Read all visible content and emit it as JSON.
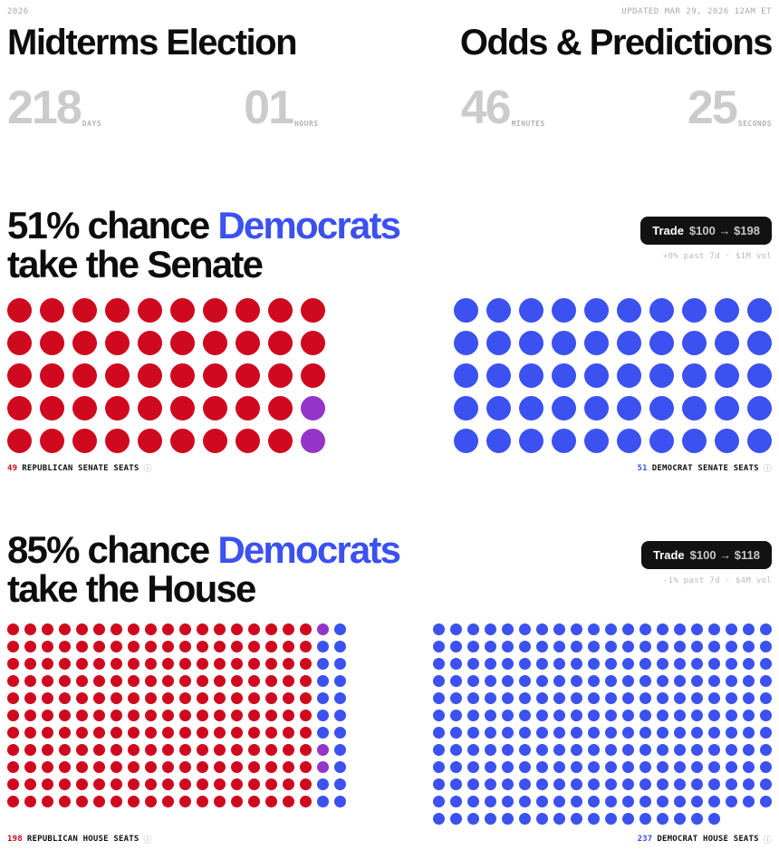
{
  "colors": {
    "red": "#cf0a1e",
    "blue": "#3b51f0",
    "purple": "#9435c9"
  },
  "icons": {
    "info": "ⓘ"
  },
  "header": {
    "year": "2026",
    "updated": "UPDATED MAR 29, 2026 12AM ET",
    "title_left": "Midterms Election",
    "title_right": "Odds & Predictions"
  },
  "countdown": [
    {
      "value": "218",
      "unit": "DAYS"
    },
    {
      "value": "01",
      "unit": "HOURS"
    },
    {
      "value": "46",
      "unit": "MINUTES"
    },
    {
      "value": "25",
      "unit": "SECONDS"
    }
  ],
  "markets": [
    {
      "headline_prefix": "51% chance ",
      "headline_accent": "Democrats",
      "headline_suffix": "take the Senate",
      "trade_label": "Trade",
      "trade_odds": "$100 → $198",
      "stats": "+0% past 7d · $1M vol",
      "left_seats": {
        "value": "49",
        "label": "REPUBLICAN SENATE SEATS"
      },
      "right_seats": {
        "value": "51",
        "label": "DEMOCRAT SENATE SEATS"
      },
      "left_grid": {
        "cols": 10,
        "count": 50,
        "dot_size": 27,
        "gap": 9,
        "default": "red",
        "special": {
          "39": "purple",
          "49": "purple"
        }
      },
      "right_grid": {
        "cols": 10,
        "count": 50,
        "dot_size": 27,
        "gap": 9,
        "default": "blue",
        "special": {}
      }
    },
    {
      "headline_prefix": "85% chance ",
      "headline_accent": "Democrats",
      "headline_suffix": "take the House",
      "trade_label": "Trade",
      "trade_odds": "$100 → $118",
      "stats": "-1% past 7d · $4M vol",
      "left_seats": {
        "value": "198",
        "label": "REPUBLICAN HOUSE SEATS"
      },
      "right_seats": {
        "value": "237",
        "label": "DEMOCRAT HOUSE SEATS"
      },
      "left_grid": {
        "cols": 20,
        "count": 220,
        "dot_size": 13,
        "gap": 6,
        "default": "red",
        "special": {
          "18": "purple",
          "19": "blue",
          "38": "blue",
          "39": "blue",
          "58": "blue",
          "59": "blue",
          "78": "blue",
          "79": "blue",
          "98": "blue",
          "99": "blue",
          "118": "blue",
          "119": "blue",
          "138": "blue",
          "139": "blue",
          "158": "purple",
          "159": "blue",
          "178": "purple",
          "179": "blue",
          "198": "blue",
          "199": "blue",
          "218": "blue",
          "219": "blue"
        }
      },
      "right_grid": {
        "cols": 20,
        "count": 237,
        "dot_size": 13,
        "gap": 6,
        "default": "blue",
        "special": {}
      }
    }
  ]
}
